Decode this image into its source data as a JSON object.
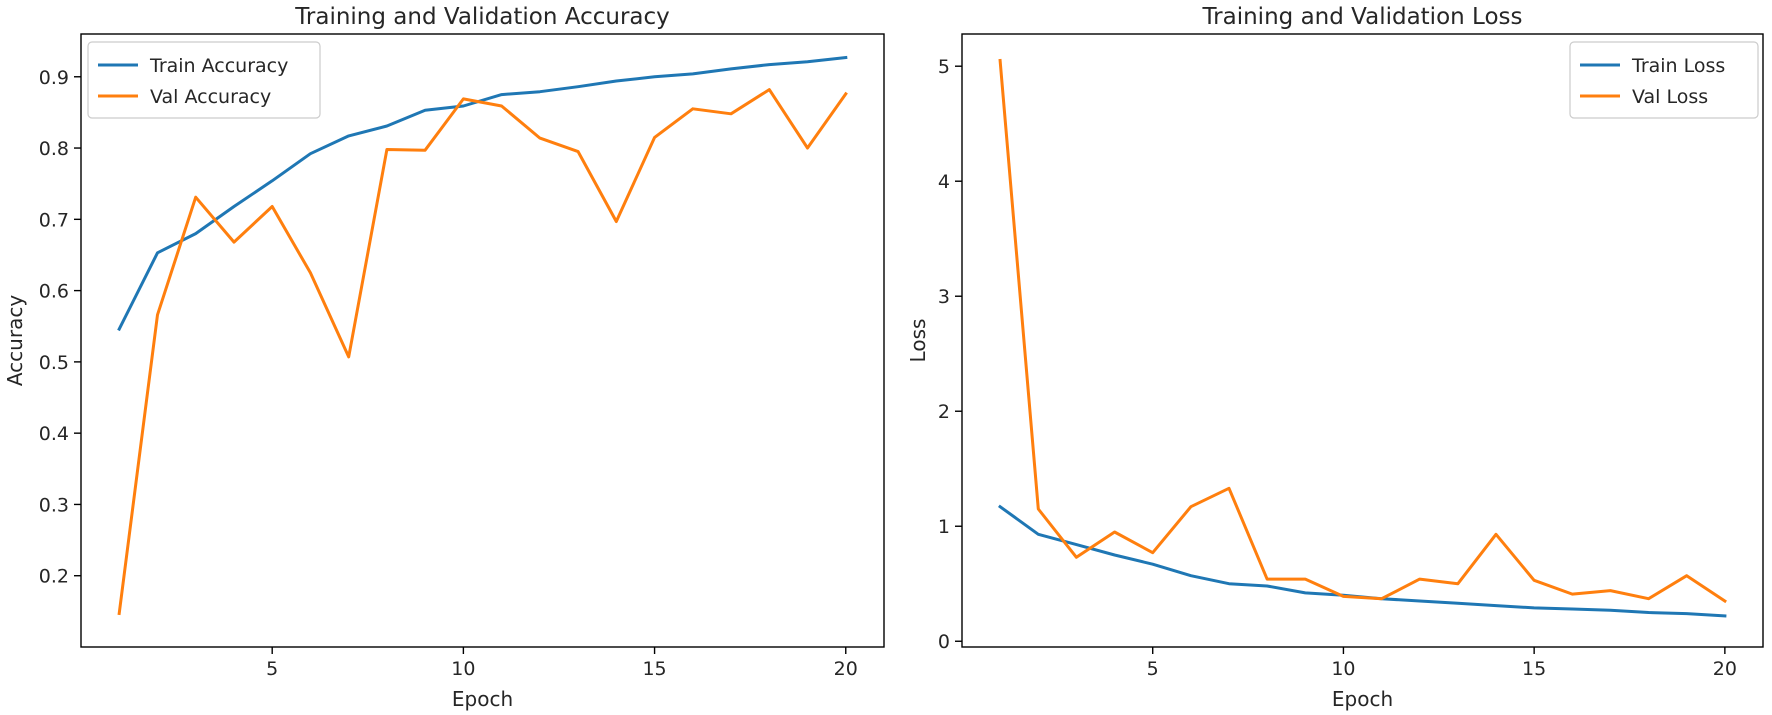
{
  "chart_data": [
    {
      "type": "line",
      "title": "Training and Validation Accuracy",
      "xlabel": "Epoch",
      "ylabel": "Accuracy",
      "xlim": [
        0,
        21
      ],
      "ylim": [
        0.1,
        0.96
      ],
      "xticks": [
        5,
        10,
        15,
        20
      ],
      "yticks": [
        0.2,
        0.3,
        0.4,
        0.5,
        0.6,
        0.7,
        0.8,
        0.9
      ],
      "ytick_labels": [
        "0.2",
        "0.3",
        "0.4",
        "0.5",
        "0.6",
        "0.7",
        "0.8",
        "0.9"
      ],
      "legend_position": "upper-left",
      "grid": false,
      "x": [
        1,
        2,
        3,
        4,
        5,
        6,
        7,
        8,
        9,
        10,
        11,
        12,
        13,
        14,
        15,
        16,
        17,
        18,
        19,
        20
      ],
      "series": [
        {
          "name": "Train Accuracy",
          "color": "#1f77b4",
          "values": [
            0.546,
            0.653,
            0.68,
            0.718,
            0.754,
            0.792,
            0.817,
            0.831,
            0.853,
            0.859,
            0.875,
            0.879,
            0.886,
            0.894,
            0.9,
            0.904,
            0.911,
            0.917,
            0.921,
            0.927
          ]
        },
        {
          "name": "Val Accuracy",
          "color": "#ff7f0e",
          "values": [
            0.147,
            0.566,
            0.731,
            0.668,
            0.718,
            0.625,
            0.507,
            0.798,
            0.797,
            0.869,
            0.859,
            0.814,
            0.795,
            0.697,
            0.815,
            0.855,
            0.848,
            0.882,
            0.8,
            0.876
          ]
        }
      ]
    },
    {
      "type": "line",
      "title": "Training and Validation Loss",
      "xlabel": "Epoch",
      "ylabel": "Loss",
      "xlim": [
        0,
        21
      ],
      "ylim": [
        -0.05,
        5.28
      ],
      "xticks": [
        5,
        10,
        15,
        20
      ],
      "yticks": [
        0,
        1,
        2,
        3,
        4,
        5
      ],
      "ytick_labels": [
        "0",
        "1",
        "2",
        "3",
        "4",
        "5"
      ],
      "legend_position": "upper-right",
      "grid": false,
      "x": [
        1,
        2,
        3,
        4,
        5,
        6,
        7,
        8,
        9,
        10,
        11,
        12,
        13,
        14,
        15,
        16,
        17,
        18,
        19,
        20
      ],
      "series": [
        {
          "name": "Train Loss",
          "color": "#1f77b4",
          "values": [
            1.17,
            0.93,
            0.84,
            0.75,
            0.67,
            0.57,
            0.5,
            0.48,
            0.42,
            0.4,
            0.37,
            0.35,
            0.33,
            0.31,
            0.29,
            0.28,
            0.27,
            0.25,
            0.24,
            0.22
          ]
        },
        {
          "name": "Val Loss",
          "color": "#ff7f0e",
          "values": [
            5.05,
            1.15,
            0.73,
            0.95,
            0.77,
            1.17,
            1.33,
            0.54,
            0.54,
            0.39,
            0.37,
            0.54,
            0.5,
            0.93,
            0.53,
            0.41,
            0.44,
            0.37,
            0.57,
            0.35
          ]
        }
      ]
    }
  ]
}
